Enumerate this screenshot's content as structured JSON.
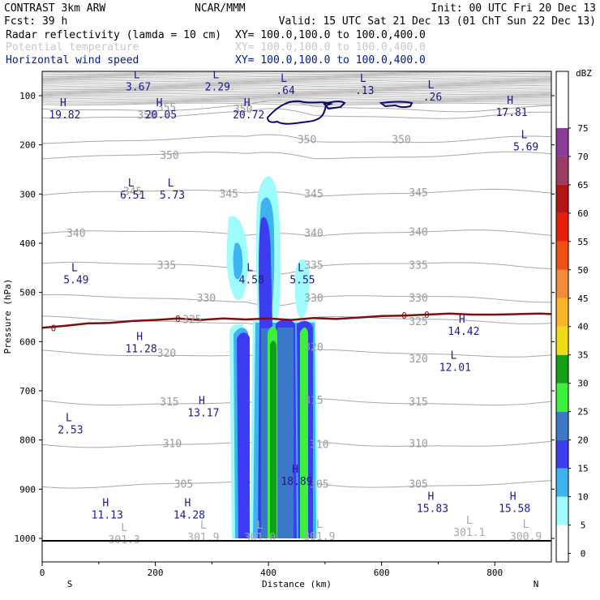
{
  "header": {
    "model": "CONTRAST  3km ARW",
    "org": "NCAR/MMM",
    "init": "Init: 00 UTC Fri 20 Dec 13",
    "fcst": "Fcst:   39 h",
    "valid": "Valid: 15 UTC Sat 21 Dec 13 (01 ChT Sun 22 Dec 13)",
    "fields": [
      {
        "name": "Radar reflectivity (lamda = 10 cm)",
        "xy": "XY= 100.0,100.0 to 100.0,400.0",
        "style": "dark"
      },
      {
        "name": "Potential temperature",
        "xy": "XY= 100.0,100.0 to 100.0,400.0",
        "style": "faint"
      },
      {
        "name": "Horizontal wind speed",
        "xy": "XY= 100.0,100.0 to 100.0,400.0",
        "style": "blue"
      }
    ]
  },
  "chart_data": {
    "type": "cross-section",
    "xlabel": "Distance (km)",
    "ylabel": "Pressure (hPa)",
    "xlim": [
      0,
      900
    ],
    "ylim": [
      1040,
      50
    ],
    "x_ticks": [
      "0",
      "200",
      "400",
      "600",
      "800"
    ],
    "y_ticks": [
      "100",
      "200",
      "300",
      "400",
      "500",
      "600",
      "700",
      "800",
      "900",
      "1000"
    ],
    "x_end_labels": {
      "left": "S",
      "right": "N"
    },
    "colorbar": {
      "unit": "dBZ",
      "levels": [
        "0",
        "5",
        "10",
        "15",
        "20",
        "25",
        "30",
        "35",
        "40",
        "45",
        "50",
        "55",
        "60",
        "65",
        "70",
        "75"
      ],
      "colors": [
        "#ffffff",
        "#9ffcfc",
        "#3cb4f0",
        "#3c3cf0",
        "#3c78c8",
        "#3cf03c",
        "#14a014",
        "#f0dc14",
        "#fcb428",
        "#f08c3c",
        "#f05014",
        "#e61e0a",
        "#b41414",
        "#9b3c64",
        "#8c3c9b",
        "#b478c8"
      ]
    },
    "theta_levels": [
      {
        "label": "355",
        "x": 220,
        "p": 125
      },
      {
        "label": "350",
        "x": 225,
        "p": 222
      },
      {
        "label": "345",
        "x": 330,
        "p": 300
      },
      {
        "label": "340",
        "x": 60,
        "p": 380
      },
      {
        "label": "335",
        "x": 220,
        "p": 445
      },
      {
        "label": "330",
        "x": 290,
        "p": 512
      },
      {
        "label": "325",
        "x": 265,
        "p": 556
      },
      {
        "label": "320",
        "x": 220,
        "p": 624
      },
      {
        "label": "315",
        "x": 225,
        "p": 723
      },
      {
        "label": "310",
        "x": 230,
        "p": 808
      },
      {
        "label": "305",
        "x": 250,
        "p": 890
      }
    ],
    "theta_repeat_labels": [
      {
        "label": "345",
        "x": 160,
        "p": 295
      },
      {
        "label": "350",
        "x": 635,
        "p": 190
      },
      {
        "label": "345",
        "x": 665,
        "p": 298
      },
      {
        "label": "340",
        "x": 665,
        "p": 378
      },
      {
        "label": "335",
        "x": 665,
        "p": 445
      },
      {
        "label": "330",
        "x": 665,
        "p": 512
      },
      {
        "label": "325",
        "x": 665,
        "p": 560
      },
      {
        "label": "320",
        "x": 665,
        "p": 636
      },
      {
        "label": "315",
        "x": 665,
        "p": 723
      },
      {
        "label": "310",
        "x": 665,
        "p": 808
      },
      {
        "label": "305",
        "x": 665,
        "p": 890
      },
      {
        "label": "350",
        "x": 468,
        "p": 190
      },
      {
        "label": "345",
        "x": 480,
        "p": 300
      },
      {
        "label": "340",
        "x": 480,
        "p": 380
      },
      {
        "label": "335",
        "x": 480,
        "p": 445
      },
      {
        "label": "330",
        "x": 480,
        "p": 512
      },
      {
        "label": "320",
        "x": 480,
        "p": 612
      },
      {
        "label": "315",
        "x": 480,
        "p": 720
      },
      {
        "label": "310",
        "x": 490,
        "p": 810
      },
      {
        "label": "305",
        "x": 490,
        "p": 890
      },
      {
        "label": "350",
        "x": 185,
        "p": 140
      },
      {
        "label": "350",
        "x": 355,
        "p": 128
      }
    ],
    "wind_extrema": [
      {
        "kind": "L",
        "value": "3.67",
        "x": 170,
        "p": 78
      },
      {
        "kind": "L",
        "value": "2.29",
        "x": 310,
        "p": 78
      },
      {
        "kind": "L",
        "value": ".64",
        "x": 430,
        "p": 85
      },
      {
        "kind": "L",
        "value": ".13",
        "x": 570,
        "p": 85
      },
      {
        "kind": "L",
        "value": ".26",
        "x": 690,
        "p": 98
      },
      {
        "kind": "H",
        "value": "19.82",
        "x": 40,
        "p": 135
      },
      {
        "kind": "H",
        "value": "20.05",
        "x": 210,
        "p": 135
      },
      {
        "kind": "H",
        "value": "20.72",
        "x": 365,
        "p": 135
      },
      {
        "kind": "H",
        "value": "17.81",
        "x": 830,
        "p": 130
      },
      {
        "kind": "L",
        "value": "5.69",
        "x": 855,
        "p": 200
      },
      {
        "kind": "L",
        "value": "6.51",
        "x": 160,
        "p": 298
      },
      {
        "kind": "L",
        "value": "5.73",
        "x": 230,
        "p": 298
      },
      {
        "kind": "L",
        "value": "5.49",
        "x": 60,
        "p": 470
      },
      {
        "kind": "L",
        "value": "4.58",
        "x": 370,
        "p": 470
      },
      {
        "kind": "L",
        "value": "5.55",
        "x": 460,
        "p": 470
      },
      {
        "kind": "H",
        "value": "14.42",
        "x": 745,
        "p": 575
      },
      {
        "kind": "H",
        "value": "11.28",
        "x": 175,
        "p": 610
      },
      {
        "kind": "L",
        "value": "12.01",
        "x": 730,
        "p": 648
      },
      {
        "kind": "H",
        "value": "13.17",
        "x": 285,
        "p": 740
      },
      {
        "kind": "L",
        "value": "2.53",
        "x": 50,
        "p": 775
      },
      {
        "kind": "H",
        "value": "18.89",
        "x": 450,
        "p": 880
      },
      {
        "kind": "H",
        "value": "11.13",
        "x": 115,
        "p": 948
      },
      {
        "kind": "H",
        "value": "14.28",
        "x": 260,
        "p": 948
      },
      {
        "kind": "H",
        "value": "15.83",
        "x": 690,
        "p": 935
      },
      {
        "kind": "H",
        "value": "15.58",
        "x": 835,
        "p": 935
      }
    ],
    "surface_theta_minima": [
      {
        "kind": "L",
        "value": "301.3",
        "x": 145,
        "p": 1005
      },
      {
        "kind": "L",
        "value": "301.9",
        "x": 285,
        "p": 1000
      },
      {
        "kind": "L",
        "value": "301.0",
        "x": 385,
        "p": 1000
      },
      {
        "kind": "L",
        "value": "301.9",
        "x": 490,
        "p": 998
      },
      {
        "kind": "L",
        "value": "301.1",
        "x": 755,
        "p": 990
      },
      {
        "kind": "L",
        "value": "300.9",
        "x": 855,
        "p": 998
      }
    ],
    "freezing_level": {
      "label": "0",
      "label_positions": [
        20,
        240,
        640,
        680
      ],
      "points": [
        [
          0,
          572
        ],
        [
          40,
          568
        ],
        [
          80,
          563
        ],
        [
          120,
          562
        ],
        [
          160,
          558
        ],
        [
          200,
          556
        ],
        [
          240,
          553
        ],
        [
          280,
          556
        ],
        [
          320,
          553
        ],
        [
          360,
          555
        ],
        [
          400,
          553
        ],
        [
          440,
          556
        ],
        [
          480,
          552
        ],
        [
          520,
          554
        ],
        [
          560,
          551
        ],
        [
          600,
          548
        ],
        [
          640,
          547
        ],
        [
          680,
          545
        ],
        [
          720,
          543
        ],
        [
          760,
          545
        ],
        [
          800,
          545
        ],
        [
          840,
          544
        ],
        [
          880,
          543
        ],
        [
          900,
          544
        ]
      ]
    }
  }
}
